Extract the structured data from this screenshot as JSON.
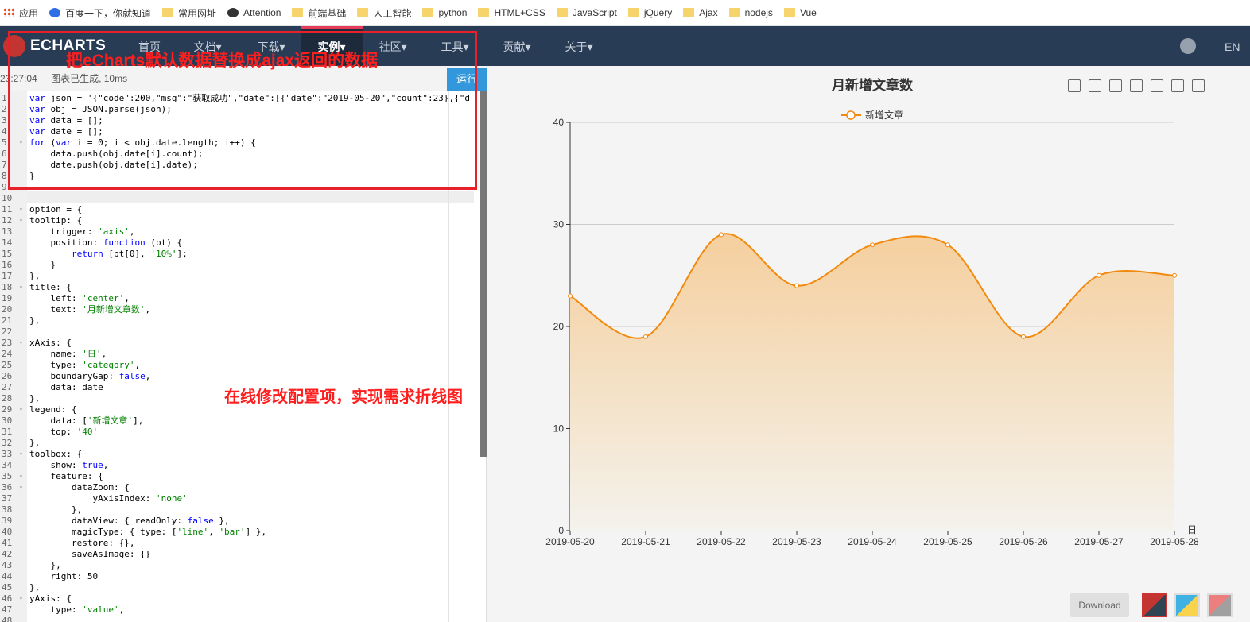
{
  "bookmarks": [
    {
      "label": "应用",
      "icon": "apps-icon"
    },
    {
      "label": "百度一下，你就知道",
      "icon": "baidu-icon"
    },
    {
      "label": "常用网址",
      "icon": "folder-icon"
    },
    {
      "label": "Attention",
      "icon": "attention-icon"
    },
    {
      "label": "前端基础",
      "icon": "folder-icon"
    },
    {
      "label": "人工智能",
      "icon": "folder-icon"
    },
    {
      "label": "python",
      "icon": "folder-icon"
    },
    {
      "label": "HTML+CSS",
      "icon": "folder-icon"
    },
    {
      "label": "JavaScript",
      "icon": "folder-icon"
    },
    {
      "label": "jQuery",
      "icon": "folder-icon"
    },
    {
      "label": "Ajax",
      "icon": "folder-icon"
    },
    {
      "label": "nodejs",
      "icon": "folder-icon"
    },
    {
      "label": "Vue",
      "icon": "folder-icon"
    }
  ],
  "nav": {
    "logo": "ECHARTS",
    "items": [
      "首页",
      "文档▾",
      "下载▾",
      "实例▾",
      "社区▾",
      "工具▾",
      "贡献▾",
      "关于▾"
    ],
    "active_index": 3,
    "lang": "EN"
  },
  "annotations": {
    "top": "把eCharts默认数据替换成ajax返回的数据",
    "middle": "在线修改配置项，实现需求折线图"
  },
  "editor": {
    "status_time": "23:27:04",
    "status_msg": "图表已生成, 10ms",
    "run_label": "运行",
    "lines": [
      "var json = '{\"code\":200,\"msg\":\"获取成功\",\"date\":[{\"date\":\"2019-05-20\",\"count\":23},{\"d",
      "var obj = JSON.parse(json);",
      "var data = [];",
      "var date = [];",
      "for (var i = 0; i < obj.date.length; i++) {",
      "    data.push(obj.date[i].count);",
      "    date.push(obj.date[i].date);",
      "}",
      "",
      "",
      "option = {",
      "tooltip: {",
      "    trigger: 'axis',",
      "    position: function (pt) {",
      "        return [pt[0], '10%'];",
      "    }",
      "},",
      "title: {",
      "    left: 'center',",
      "    text: '月新增文章数',",
      "},",
      "",
      "xAxis: {",
      "    name: '日',",
      "    type: 'category',",
      "    boundaryGap: false,",
      "    data: date",
      "},",
      "legend: {",
      "    data: ['新增文章'],",
      "    top: '40'",
      "},",
      "toolbox: {",
      "    show: true,",
      "    feature: {",
      "        dataZoom: {",
      "            yAxisIndex: 'none'",
      "        },",
      "        dataView: { readOnly: false },",
      "        magicType: { type: ['line', 'bar'] },",
      "        restore: {},",
      "        saveAsImage: {}",
      "    },",
      "    right: 50",
      "},",
      "yAxis: {",
      "    type: 'value',",
      ""
    ],
    "fold_lines": [
      5,
      11,
      12,
      18,
      23,
      29,
      33,
      35,
      36,
      46
    ]
  },
  "chart_buttons": {
    "download_label": "Download"
  },
  "colors": {
    "line": "#f28a0d",
    "area_top": "#f5cf9e",
    "area_bottom": "#f4f2ec",
    "grid": "#cccccc",
    "nav_bg": "#293c55",
    "annotation": "#ff1e1e"
  },
  "chart_data": {
    "type": "line",
    "title": "月新增文章数",
    "legend": [
      "新增文章"
    ],
    "xlabel": "日",
    "ylabel": "",
    "categories": [
      "2019-05-20",
      "2019-05-21",
      "2019-05-22",
      "2019-05-23",
      "2019-05-24",
      "2019-05-25",
      "2019-05-26",
      "2019-05-27",
      "2019-05-28"
    ],
    "series": [
      {
        "name": "新增文章",
        "values": [
          23,
          19,
          29,
          24,
          28,
          28,
          19,
          25,
          25
        ]
      }
    ],
    "ylim": [
      0,
      40
    ],
    "yticks": [
      0,
      10,
      20,
      30,
      40
    ],
    "smooth": true,
    "area": true,
    "grid": true,
    "legend_position": "top-center"
  }
}
